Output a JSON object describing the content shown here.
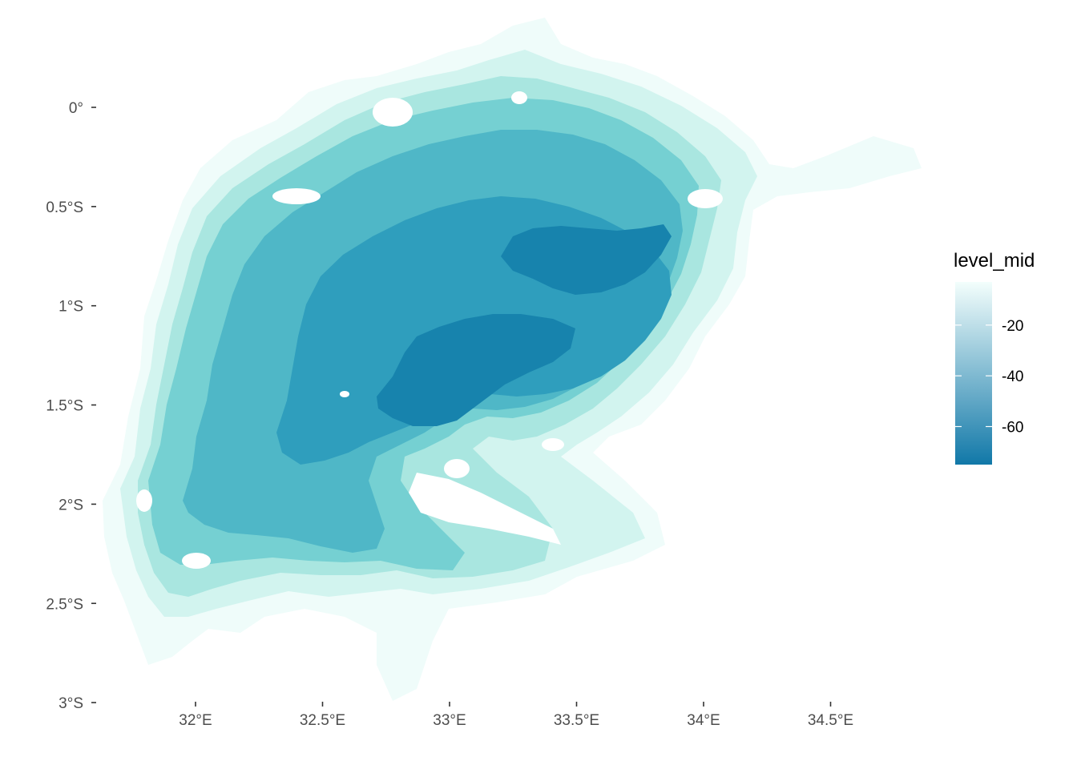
{
  "map": {
    "x_axis": {
      "ticks": [
        {
          "value": 32.0,
          "label": "32°E"
        },
        {
          "value": 32.5,
          "label": "32.5°E"
        },
        {
          "value": 33.0,
          "label": "33°E"
        },
        {
          "value": 33.5,
          "label": "33.5°E"
        },
        {
          "value": 34.0,
          "label": "34°E"
        },
        {
          "value": 34.5,
          "label": "34.5°E"
        }
      ]
    },
    "y_axis": {
      "ticks": [
        {
          "value": 0.0,
          "label": "0°"
        },
        {
          "value": -0.5,
          "label": "0.5°S"
        },
        {
          "value": -1.0,
          "label": "1°S"
        },
        {
          "value": -1.5,
          "label": "1.5°S"
        },
        {
          "value": -2.0,
          "label": "2°S"
        },
        {
          "value": -2.5,
          "label": "2.5°S"
        },
        {
          "value": -3.0,
          "label": "3°S"
        }
      ]
    },
    "depth_bands": [
      {
        "level": -5,
        "color": "#effcfa"
      },
      {
        "level": -15,
        "color": "#d2f4ef"
      },
      {
        "level": -25,
        "color": "#a9e6e0"
      },
      {
        "level": -35,
        "color": "#75d0d2"
      },
      {
        "level": -45,
        "color": "#4fb7c7"
      },
      {
        "level": -55,
        "color": "#2f9ebd"
      },
      {
        "level": -68,
        "color": "#1783ad"
      }
    ],
    "legend": {
      "title": "level_mid",
      "min": -75,
      "max": -3,
      "breaks": [
        {
          "value": -20,
          "label": "-20"
        },
        {
          "value": -40,
          "label": "-40"
        },
        {
          "value": -60,
          "label": "-60"
        }
      ],
      "low_color": "#1178a8",
      "high_color": "#f3fefc"
    }
  }
}
